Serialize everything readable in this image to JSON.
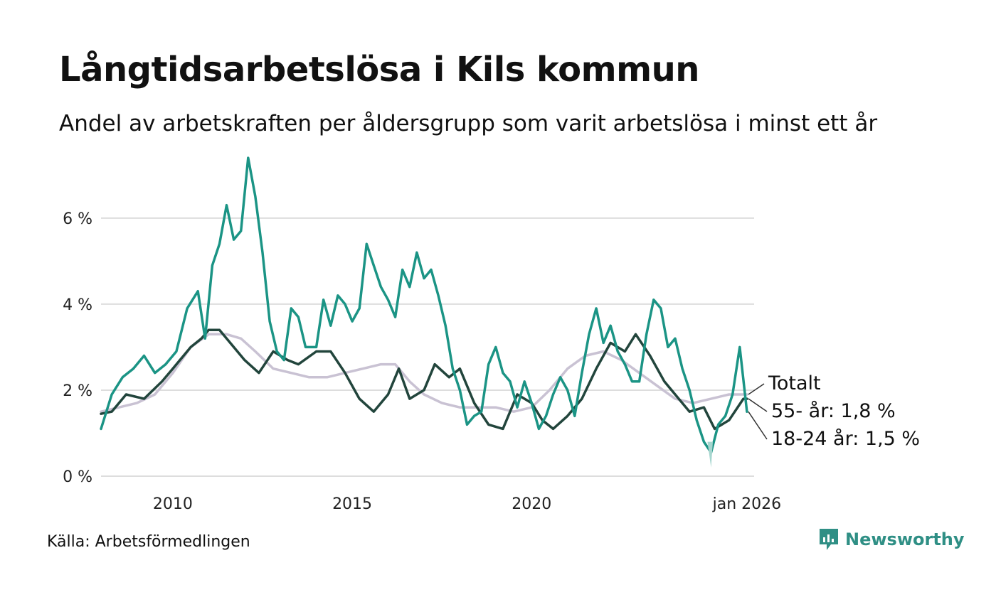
{
  "title": "Långtidsarbetslösa i Kils kommun",
  "subtitle": "Andel av arbetskraften per åldersgrupp som varit arbetslösa i minst ett år",
  "source": "Källa: Arbetsförmedlingen",
  "brand": "Newsworthy",
  "colors": {
    "total": "#c9c2d3",
    "age55": "#22453c",
    "age1824": "#1b9485",
    "age1824_band": "#a6d6cf",
    "grid": "#dddddd",
    "brand": "#2f8f85"
  },
  "chart_data": {
    "type": "line",
    "xlim": [
      2008,
      2026.2
    ],
    "ylim": [
      0,
      7.6
    ],
    "yticks": [
      {
        "value": 0,
        "label": "0 %"
      },
      {
        "value": 2,
        "label": "2 %"
      },
      {
        "value": 4,
        "label": "4 %"
      },
      {
        "value": 6,
        "label": "6 %"
      }
    ],
    "xticks": [
      {
        "value": 2010,
        "label": "2010"
      },
      {
        "value": 2015,
        "label": "2015"
      },
      {
        "value": 2020,
        "label": "2020"
      },
      {
        "value": 2026,
        "label": "jan 2026"
      }
    ],
    "end_labels": [
      "Totalt",
      "55- år: 1,8 %",
      "18-24 år: 1,5 %"
    ],
    "series": [
      {
        "name": "Totalt",
        "points": [
          [
            2008.0,
            1.5
          ],
          [
            2008.5,
            1.6
          ],
          [
            2009.0,
            1.7
          ],
          [
            2009.5,
            1.9
          ],
          [
            2010.0,
            2.4
          ],
          [
            2010.5,
            3.0
          ],
          [
            2011.0,
            3.3
          ],
          [
            2011.5,
            3.3
          ],
          [
            2011.9,
            3.2
          ],
          [
            2012.3,
            2.9
          ],
          [
            2012.8,
            2.5
          ],
          [
            2013.3,
            2.4
          ],
          [
            2013.8,
            2.3
          ],
          [
            2014.3,
            2.3
          ],
          [
            2014.8,
            2.4
          ],
          [
            2015.3,
            2.5
          ],
          [
            2015.8,
            2.6
          ],
          [
            2016.2,
            2.6
          ],
          [
            2016.6,
            2.2
          ],
          [
            2017.0,
            1.9
          ],
          [
            2017.5,
            1.7
          ],
          [
            2018.0,
            1.6
          ],
          [
            2018.5,
            1.6
          ],
          [
            2019.0,
            1.6
          ],
          [
            2019.5,
            1.5
          ],
          [
            2020.0,
            1.6
          ],
          [
            2020.5,
            2.0
          ],
          [
            2021.0,
            2.5
          ],
          [
            2021.5,
            2.8
          ],
          [
            2022.0,
            2.9
          ],
          [
            2022.5,
            2.7
          ],
          [
            2023.0,
            2.4
          ],
          [
            2023.5,
            2.1
          ],
          [
            2024.0,
            1.8
          ],
          [
            2024.5,
            1.7
          ],
          [
            2025.0,
            1.8
          ],
          [
            2025.5,
            1.9
          ],
          [
            2026.0,
            1.9
          ]
        ]
      },
      {
        "name": "55- år",
        "points": [
          [
            2008.0,
            1.45
          ],
          [
            2008.3,
            1.5
          ],
          [
            2008.7,
            1.9
          ],
          [
            2009.2,
            1.8
          ],
          [
            2009.7,
            2.2
          ],
          [
            2010.0,
            2.5
          ],
          [
            2010.5,
            3.0
          ],
          [
            2010.8,
            3.2
          ],
          [
            2011.0,
            3.4
          ],
          [
            2011.3,
            3.4
          ],
          [
            2011.7,
            3.0
          ],
          [
            2012.0,
            2.7
          ],
          [
            2012.4,
            2.4
          ],
          [
            2012.8,
            2.9
          ],
          [
            2013.2,
            2.7
          ],
          [
            2013.5,
            2.6
          ],
          [
            2014.0,
            2.9
          ],
          [
            2014.4,
            2.9
          ],
          [
            2014.8,
            2.4
          ],
          [
            2015.2,
            1.8
          ],
          [
            2015.6,
            1.5
          ],
          [
            2016.0,
            1.9
          ],
          [
            2016.3,
            2.5
          ],
          [
            2016.6,
            1.8
          ],
          [
            2017.0,
            2.0
          ],
          [
            2017.3,
            2.6
          ],
          [
            2017.7,
            2.3
          ],
          [
            2018.0,
            2.5
          ],
          [
            2018.4,
            1.7
          ],
          [
            2018.8,
            1.2
          ],
          [
            2019.2,
            1.1
          ],
          [
            2019.6,
            1.9
          ],
          [
            2020.0,
            1.7
          ],
          [
            2020.3,
            1.3
          ],
          [
            2020.6,
            1.1
          ],
          [
            2021.0,
            1.4
          ],
          [
            2021.4,
            1.8
          ],
          [
            2021.8,
            2.5
          ],
          [
            2022.2,
            3.1
          ],
          [
            2022.6,
            2.9
          ],
          [
            2022.9,
            3.3
          ],
          [
            2023.3,
            2.8
          ],
          [
            2023.7,
            2.2
          ],
          [
            2024.0,
            1.9
          ],
          [
            2024.4,
            1.5
          ],
          [
            2024.8,
            1.6
          ],
          [
            2025.1,
            1.1
          ],
          [
            2025.5,
            1.3
          ],
          [
            2025.9,
            1.8
          ],
          [
            2026.0,
            1.8
          ]
        ]
      },
      {
        "name": "18-24 år",
        "points": [
          [
            2008.0,
            1.1
          ],
          [
            2008.3,
            1.9
          ],
          [
            2008.6,
            2.3
          ],
          [
            2008.9,
            2.5
          ],
          [
            2009.2,
            2.8
          ],
          [
            2009.5,
            2.4
          ],
          [
            2009.8,
            2.6
          ],
          [
            2010.1,
            2.9
          ],
          [
            2010.4,
            3.9
          ],
          [
            2010.7,
            4.3
          ],
          [
            2010.9,
            3.2
          ],
          [
            2011.1,
            4.9
          ],
          [
            2011.3,
            5.4
          ],
          [
            2011.5,
            6.3
          ],
          [
            2011.7,
            5.5
          ],
          [
            2011.9,
            5.7
          ],
          [
            2012.1,
            7.4
          ],
          [
            2012.3,
            6.5
          ],
          [
            2012.5,
            5.2
          ],
          [
            2012.7,
            3.6
          ],
          [
            2012.9,
            2.9
          ],
          [
            2013.1,
            2.7
          ],
          [
            2013.3,
            3.9
          ],
          [
            2013.5,
            3.7
          ],
          [
            2013.7,
            3.0
          ],
          [
            2014.0,
            3.0
          ],
          [
            2014.2,
            4.1
          ],
          [
            2014.4,
            3.5
          ],
          [
            2014.6,
            4.2
          ],
          [
            2014.8,
            4.0
          ],
          [
            2015.0,
            3.6
          ],
          [
            2015.2,
            3.9
          ],
          [
            2015.4,
            5.4
          ],
          [
            2015.6,
            4.9
          ],
          [
            2015.8,
            4.4
          ],
          [
            2016.0,
            4.1
          ],
          [
            2016.2,
            3.7
          ],
          [
            2016.4,
            4.8
          ],
          [
            2016.6,
            4.4
          ],
          [
            2016.8,
            5.2
          ],
          [
            2017.0,
            4.6
          ],
          [
            2017.2,
            4.8
          ],
          [
            2017.4,
            4.2
          ],
          [
            2017.6,
            3.5
          ],
          [
            2017.8,
            2.5
          ],
          [
            2018.0,
            2.0
          ],
          [
            2018.2,
            1.2
          ],
          [
            2018.4,
            1.4
          ],
          [
            2018.6,
            1.5
          ],
          [
            2018.8,
            2.6
          ],
          [
            2019.0,
            3.0
          ],
          [
            2019.2,
            2.4
          ],
          [
            2019.4,
            2.2
          ],
          [
            2019.6,
            1.6
          ],
          [
            2019.8,
            2.2
          ],
          [
            2020.0,
            1.7
          ],
          [
            2020.2,
            1.1
          ],
          [
            2020.4,
            1.4
          ],
          [
            2020.6,
            1.9
          ],
          [
            2020.8,
            2.3
          ],
          [
            2021.0,
            2.0
          ],
          [
            2021.2,
            1.4
          ],
          [
            2021.4,
            2.4
          ],
          [
            2021.6,
            3.3
          ],
          [
            2021.8,
            3.9
          ],
          [
            2022.0,
            3.1
          ],
          [
            2022.2,
            3.5
          ],
          [
            2022.4,
            2.9
          ],
          [
            2022.6,
            2.6
          ],
          [
            2022.8,
            2.2
          ],
          [
            2023.0,
            2.2
          ],
          [
            2023.2,
            3.3
          ],
          [
            2023.4,
            4.1
          ],
          [
            2023.6,
            3.9
          ],
          [
            2023.8,
            3.0
          ],
          [
            2024.0,
            3.2
          ],
          [
            2024.2,
            2.5
          ],
          [
            2024.4,
            2.0
          ],
          [
            2024.6,
            1.3
          ],
          [
            2024.8,
            0.8
          ],
          [
            2025.0,
            0.55
          ],
          [
            2025.2,
            1.2
          ],
          [
            2025.4,
            1.4
          ],
          [
            2025.6,
            1.9
          ],
          [
            2025.8,
            3.0
          ],
          [
            2026.0,
            1.5
          ]
        ]
      }
    ]
  }
}
